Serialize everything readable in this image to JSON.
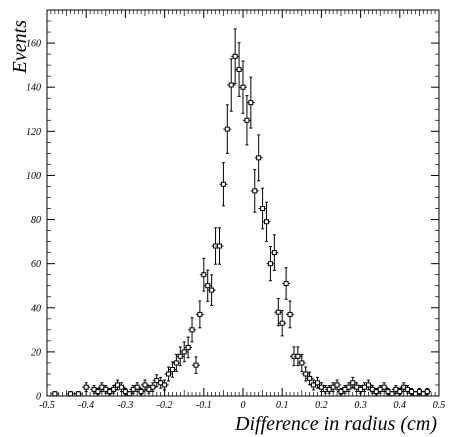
{
  "chart_data": {
    "type": "scatter",
    "title": "",
    "xlabel": "Difference in radius (cm)",
    "ylabel": "Events",
    "xlim": [
      -0.5,
      0.5
    ],
    "ylim": [
      0,
      175
    ],
    "xticks": [
      "-0.5",
      "-0.4",
      "-0.3",
      "-0.2",
      "-0.1",
      "0",
      "0.1",
      "0.2",
      "0.3",
      "0.4",
      "0.5"
    ],
    "yticks": [
      "0",
      "20",
      "40",
      "60",
      "80",
      "100",
      "120",
      "140",
      "160"
    ],
    "grid": false,
    "error_bars": "vertical, approx. sqrt(N)",
    "marker": "open square, black",
    "series": [
      {
        "x": [
          -0.48,
          -0.44,
          -0.42,
          -0.4,
          -0.38,
          -0.37,
          -0.36,
          -0.35,
          -0.34,
          -0.33,
          -0.32,
          -0.31,
          -0.3,
          -0.29,
          -0.28,
          -0.27,
          -0.26,
          -0.25,
          -0.24,
          -0.23,
          -0.22,
          -0.21,
          -0.2,
          -0.19,
          -0.18,
          -0.17,
          -0.16,
          -0.15,
          -0.14,
          -0.13,
          -0.12,
          -0.11,
          -0.1,
          -0.09,
          -0.08,
          -0.07,
          -0.06,
          -0.05,
          -0.04,
          -0.03,
          -0.02,
          -0.01,
          0.0,
          0.01,
          0.02,
          0.03,
          0.04,
          0.05,
          0.06,
          0.07,
          0.08,
          0.09,
          0.1,
          0.11,
          0.12,
          0.13,
          0.14,
          0.15,
          0.16,
          0.17,
          0.18,
          0.19,
          0.2,
          0.21,
          0.22,
          0.23,
          0.24,
          0.25,
          0.26,
          0.27,
          0.28,
          0.29,
          0.3,
          0.31,
          0.32,
          0.33,
          0.34,
          0.35,
          0.36,
          0.37,
          0.38,
          0.39,
          0.4,
          0.41,
          0.42,
          0.43,
          0.44,
          0.45,
          0.46,
          0.47
        ],
        "y": [
          1,
          1,
          1,
          4,
          3,
          2,
          4,
          3,
          2,
          3,
          5,
          4,
          2,
          1,
          3,
          4,
          2,
          5,
          3,
          4,
          7,
          6,
          5,
          10,
          12,
          15,
          18,
          20,
          22,
          30,
          14,
          37,
          55,
          50,
          48,
          68,
          68,
          96,
          121,
          141,
          154,
          148,
          140,
          125,
          133,
          93,
          108,
          85,
          79,
          60,
          65,
          38,
          33,
          51,
          37,
          18,
          18,
          15,
          10,
          8,
          5,
          6,
          4,
          3,
          3,
          4,
          5,
          2,
          3,
          4,
          6,
          4,
          3,
          4,
          5,
          3,
          2,
          3,
          4,
          2,
          1,
          3,
          2,
          4,
          3,
          2,
          1,
          2,
          1,
          2
        ]
      }
    ]
  }
}
